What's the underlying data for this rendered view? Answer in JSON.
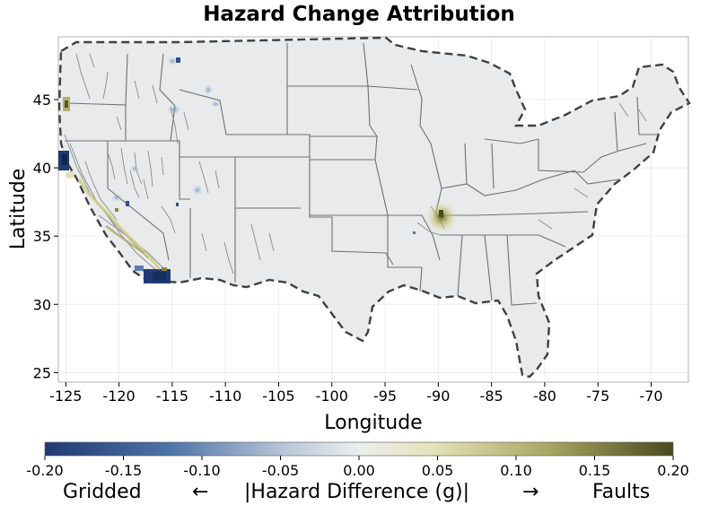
{
  "title": "Hazard Change Attribution",
  "xlabel": "Longitude",
  "ylabel": "Latitude",
  "x_ticks": [
    "-125",
    "-120",
    "-115",
    "-110",
    "-105",
    "-100",
    "-95",
    "-90",
    "-85",
    "-80",
    "-75",
    "-70"
  ],
  "y_ticks": [
    "45",
    "40",
    "35",
    "30",
    "25"
  ],
  "colorbar": {
    "ticks": [
      "-0.20",
      "-0.15",
      "-0.10",
      "-0.05",
      "0.00",
      "0.05",
      "0.10",
      "0.15",
      "0.20"
    ],
    "range": [
      -0.2,
      0.2
    ],
    "low_color": "#1f3a73",
    "mid_color": "#eceeed",
    "high_color": "#4a4a1e"
  },
  "footer": {
    "left": "Gridded",
    "left_arrow": "←",
    "center": "|Hazard Difference (g)|",
    "right_arrow": "→",
    "right": "Faults"
  },
  "map": {
    "lon_range": [
      -125.7,
      -66.5
    ],
    "lat_range": [
      24.3,
      49.6
    ],
    "boundary_style": "dashed",
    "grid": true
  }
}
